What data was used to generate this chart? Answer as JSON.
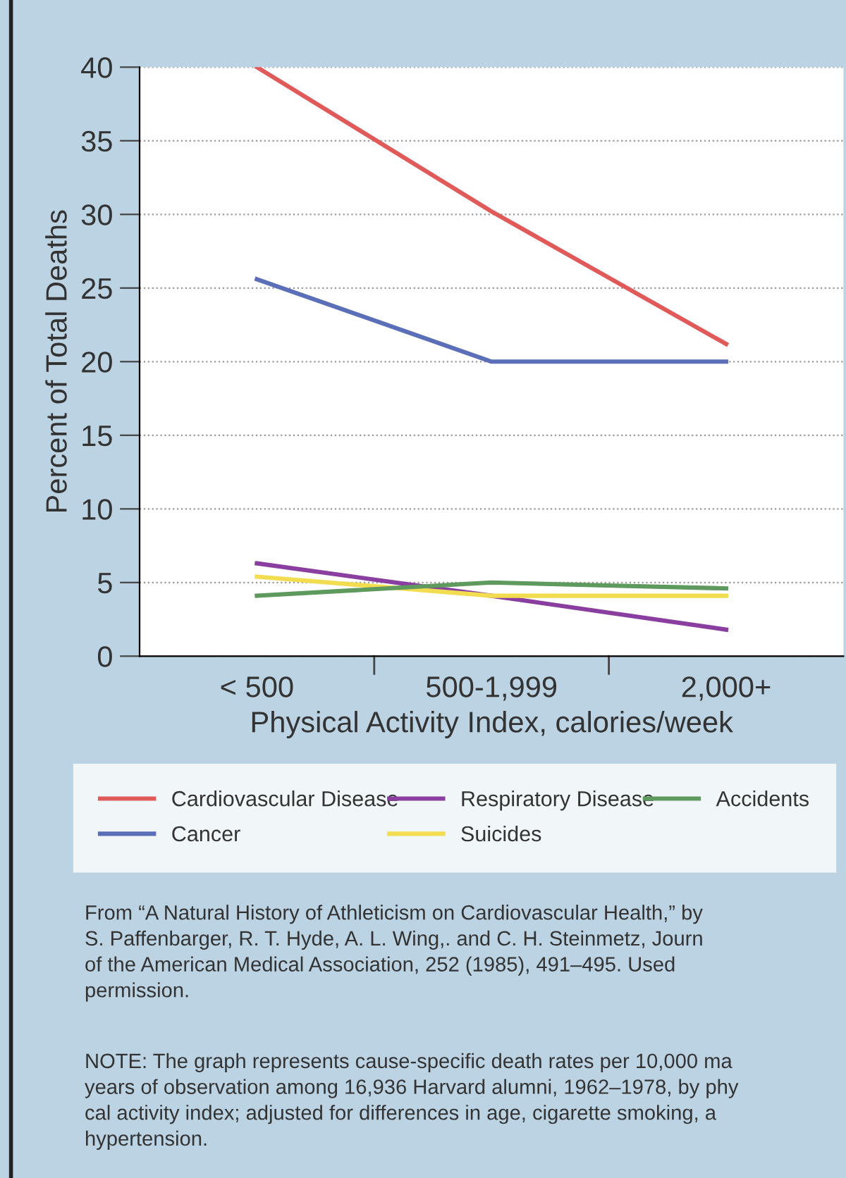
{
  "chart_data": {
    "type": "line",
    "ylabel": "Percent of Total Deaths",
    "xlabel": "Physical Activity Index, calories/week",
    "categories": [
      "< 500",
      "500-1,999",
      "2,000+"
    ],
    "series": [
      {
        "name": "Cardiovascular Disease",
        "color": "#e05a5a",
        "values": [
          40,
          30.2,
          21.2
        ]
      },
      {
        "name": "Cancer",
        "color": "#5a6fb8",
        "values": [
          25.6,
          20,
          20
        ]
      },
      {
        "name": "Respiratory Disease",
        "color": "#8a3fa0",
        "values": [
          6.3,
          4.1,
          1.8
        ]
      },
      {
        "name": "Suicides",
        "color": "#f2dc50",
        "values": [
          5.4,
          4.1,
          4.1
        ]
      },
      {
        "name": "Accidents",
        "color": "#5e9a5e",
        "values": [
          4.1,
          5.0,
          4.6
        ]
      }
    ],
    "ylim": [
      0,
      40
    ],
    "yticks": [
      0,
      5,
      10,
      15,
      20,
      25,
      30,
      35,
      40
    ],
    "grid": "y",
    "legend": "bottom",
    "marker": "none",
    "line_style": "solid",
    "annotations": [
      "From “A Natural History of Athleticism on Cardiovascular Health,” by\nS. Paffenbarger, R. T. Hyde, A. L. Wing,. and C. H. Steinmetz, Journ\nof the American Medical Association, 252 (1985), 491–495. Used\npermission.",
      "NOTE: The graph represents cause-specific death rates per 10,000 ma\nyears of observation among 16,936 Harvard alumni, 1962–1978, by phy\ncal activity index; adjusted for differences in age, cigarette smoking, a\nhypertension."
    ]
  }
}
